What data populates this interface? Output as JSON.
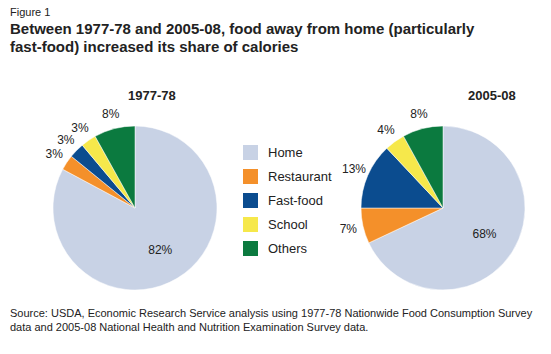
{
  "figure": "Figure 1",
  "title": "Between 1977-78 and 2005-08, food away from home (particularly fast-food) increased its share of calories",
  "source": "Source: USDA, Economic Research Service analysis using 1977-78 Nationwide Food Consumption Survey data and 2005-08 National Health and Nutrition Examination Survey data.",
  "chart_data": [
    {
      "type": "pie",
      "title": "1977-78",
      "categories": [
        "Home",
        "Restaurant",
        "Fast-food",
        "School",
        "Others"
      ],
      "values": [
        82,
        3,
        3,
        3,
        8
      ],
      "value_labels": [
        "82%",
        "3%",
        "3%",
        "3%",
        "8%"
      ],
      "colors": [
        "#c8d2e5",
        "#f4902a",
        "#0b4c8f",
        "#f6e84b",
        "#0b7a3f"
      ],
      "data_labels": true
    },
    {
      "type": "pie",
      "title": "2005-08",
      "categories": [
        "Home",
        "Restaurant",
        "Fast-food",
        "School",
        "Others"
      ],
      "values": [
        68,
        7,
        13,
        4,
        8
      ],
      "value_labels": [
        "68%",
        "7%",
        "13%",
        "4%",
        "8%"
      ],
      "colors": [
        "#c8d2e5",
        "#f4902a",
        "#0b4c8f",
        "#f6e84b",
        "#0b7a3f"
      ],
      "data_labels": true
    }
  ]
}
